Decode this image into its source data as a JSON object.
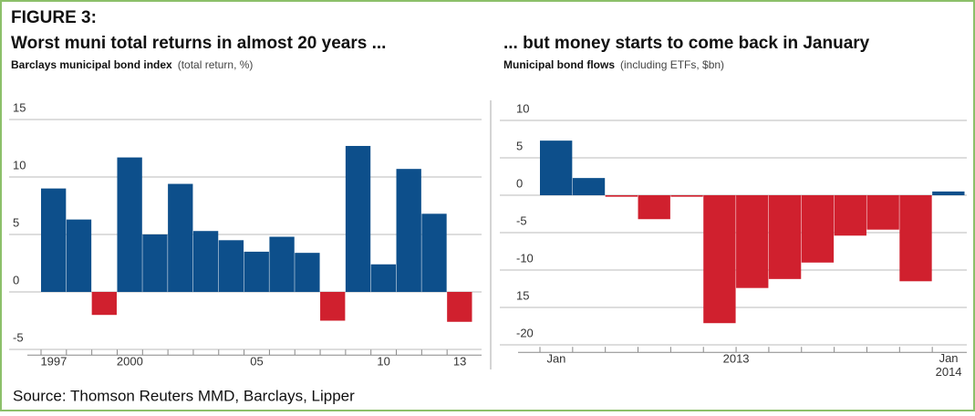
{
  "figure_label": "FIGURE 3:",
  "source": "Source: Thomson Reuters MMD, Barclays, Lipper",
  "chart_data": [
    {
      "type": "bar",
      "title": "Worst muni total returns in almost 20 years ...",
      "subtitle": "Barclays municipal bond index",
      "subtitle_note": "(total return, %)",
      "categories": [
        "1997",
        null,
        null,
        "2000",
        null,
        null,
        null,
        null,
        "05",
        null,
        null,
        null,
        null,
        "10",
        null,
        null,
        "13"
      ],
      "values": [
        9.0,
        6.3,
        -2.0,
        11.7,
        5.0,
        9.4,
        5.3,
        4.5,
        3.5,
        4.8,
        3.4,
        -2.5,
        12.7,
        2.4,
        10.7,
        6.8,
        -2.6
      ],
      "positive_color": "#0d4f8b",
      "negative_color": "#d0202e",
      "ylim": [
        -5.5,
        16
      ],
      "yticks": [
        15,
        10,
        5,
        0,
        -5
      ],
      "grid": true
    },
    {
      "type": "bar",
      "title": "... but money starts to come back in January",
      "subtitle": "Municipal bond flows",
      "subtitle_note": "(including ETFs, $bn)",
      "categories": [
        "Jan",
        null,
        null,
        null,
        null,
        null,
        null,
        null,
        null,
        null,
        null,
        null,
        "Jan 2014"
      ],
      "year_label": "2013",
      "values": [
        7.3,
        2.3,
        -0.2,
        -3.2,
        -0.2,
        -17.1,
        -12.4,
        -11.2,
        -9.0,
        -5.4,
        -4.6,
        -11.5,
        0.5
      ],
      "positive_color": "#0d4f8b",
      "negative_color": "#d0202e",
      "ylim": [
        -21,
        12
      ],
      "yticks": [
        10,
        5,
        0,
        -5,
        -10,
        {
          "value": -15,
          "label": "15"
        },
        -20
      ],
      "grid": true
    }
  ]
}
